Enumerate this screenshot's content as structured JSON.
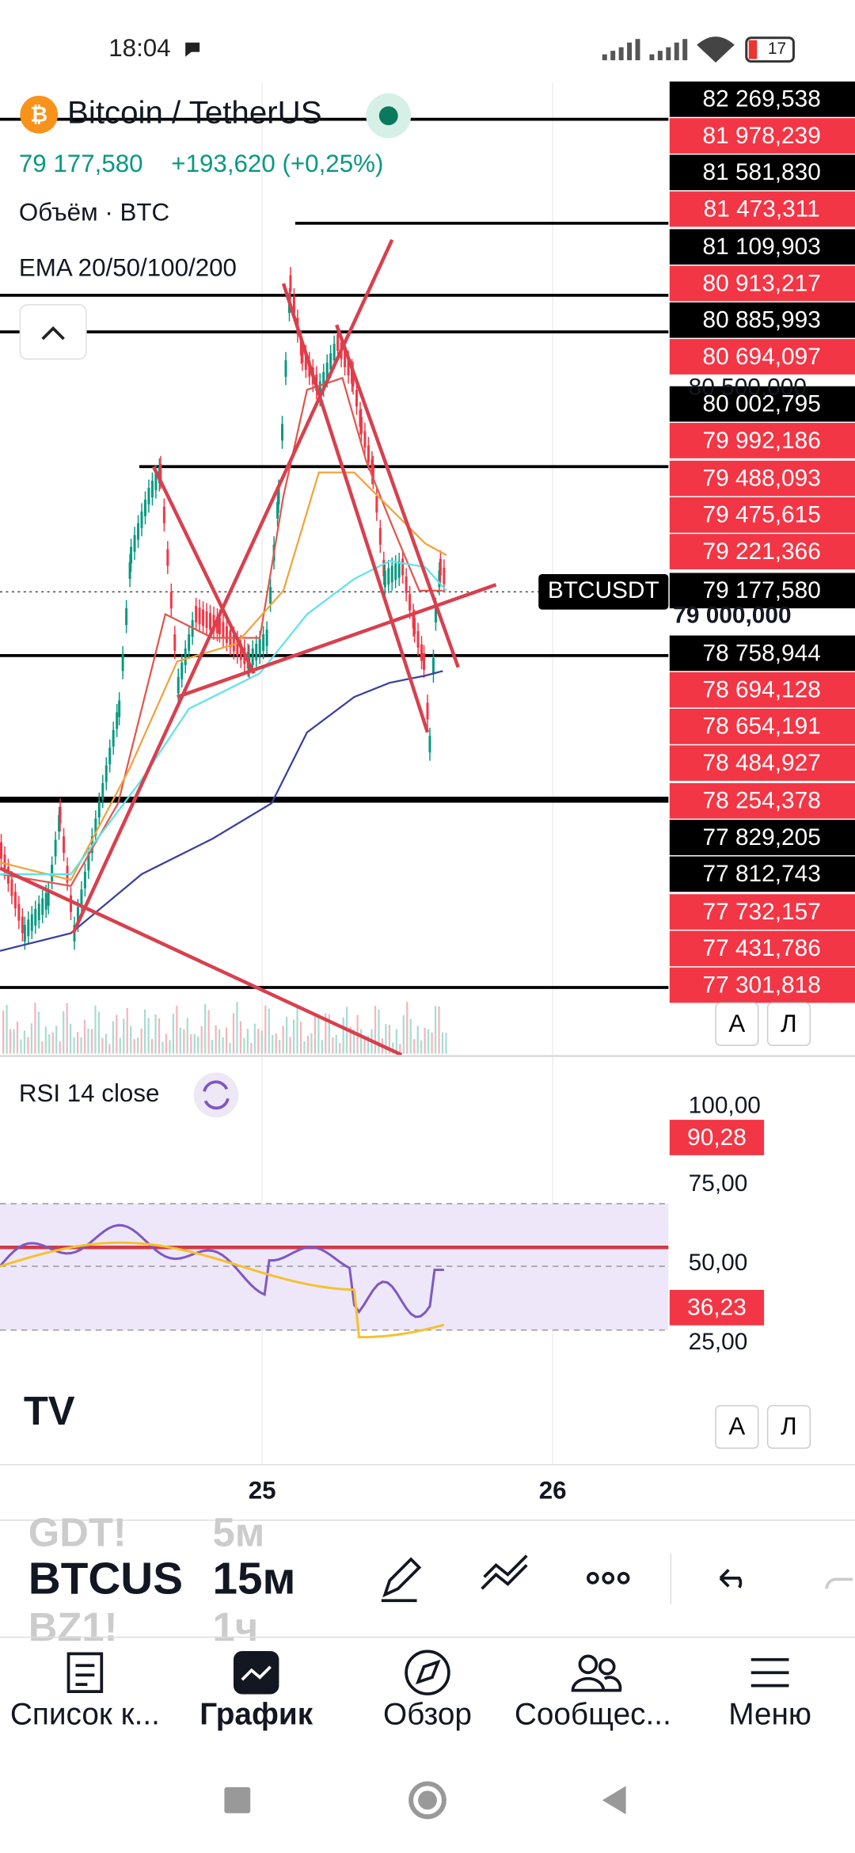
{
  "status_bar": {
    "time": "18:04",
    "battery": "17"
  },
  "header": {
    "symbol": "Bitcoin / TetherUS",
    "price": "79 177,580",
    "change": "+193,620 (+0,25%)",
    "volume": "Объём · BTC",
    "ema": "EMA 20/50/100/200"
  },
  "price_labels": [
    {
      "text": "82 269,538",
      "color": "#000000"
    },
    {
      "text": "81 978,239",
      "color": "#f23645"
    },
    {
      "text": "81 581,830",
      "color": "#000000"
    },
    {
      "text": "81 473,311",
      "color": "#f23645"
    },
    {
      "text": "81 109,903",
      "color": "#000000"
    },
    {
      "text": "80 913,217",
      "color": "#f23645"
    },
    {
      "text": "80 885,993",
      "color": "#000000"
    },
    {
      "text": "80 694,097",
      "color": "#f23645"
    },
    {
      "text": "80 002,795",
      "color": "#000000"
    },
    {
      "text": "79 992,186",
      "color": "#f23645"
    },
    {
      "text": "79 488,093",
      "color": "#f23645"
    },
    {
      "text": "79 475,615",
      "color": "#f23645"
    },
    {
      "text": "79 221,366",
      "color": "#f23645"
    },
    {
      "text": "79 177,580",
      "color": "#000000"
    },
    {
      "text": "78 758,944",
      "color": "#000000"
    },
    {
      "text": "78 694,128",
      "color": "#f23645"
    },
    {
      "text": "78 654,191",
      "color": "#f23645"
    },
    {
      "text": "78 484,927",
      "color": "#f23645"
    },
    {
      "text": "78 254,378",
      "color": "#f23645"
    },
    {
      "text": "77 829,205",
      "color": "#000000"
    },
    {
      "text": "77 812,743",
      "color": "#000000"
    },
    {
      "text": "77 732,157",
      "color": "#f23645"
    },
    {
      "text": "77 431,786",
      "color": "#f23645"
    },
    {
      "text": "77 301,818",
      "color": "#f23645"
    }
  ],
  "axis_labels": [
    "80 500,000",
    "79 000,000"
  ],
  "last_price_tag": "BTCUSDT",
  "scale_buttons": [
    "A",
    "Л"
  ],
  "rsi": {
    "title": "RSI 14 close",
    "ticks": [
      "100,00",
      "75,00",
      "50,00",
      "25,00"
    ],
    "labels": [
      "90,28",
      "36,23"
    ]
  },
  "time_axis": [
    "25",
    "26"
  ],
  "toolbar": {
    "symbols": [
      "GDT!",
      "BTCUS",
      "BZ1!"
    ],
    "intervals": [
      "5м",
      "15м",
      "1ч"
    ]
  },
  "nav": [
    "Список к...",
    "График",
    "Обзор",
    "Сообщес...",
    "Меню"
  ]
}
